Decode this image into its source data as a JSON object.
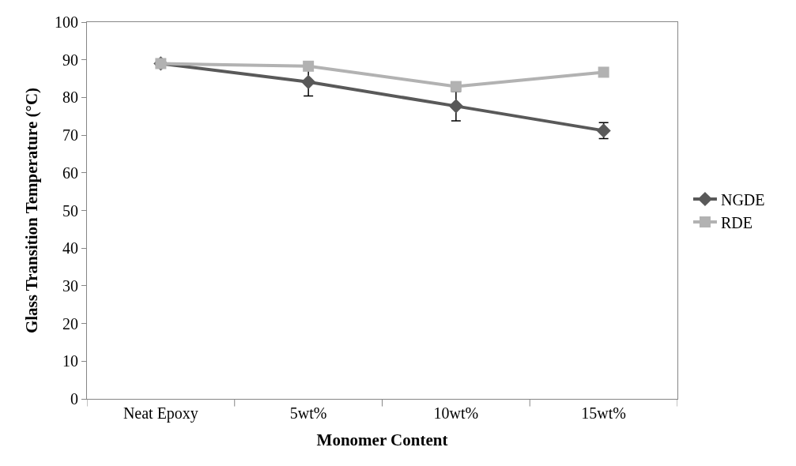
{
  "chart_data": {
    "type": "line",
    "xlabel": "Monomer Content",
    "ylabel": "Glass Transition Temperature (°C)",
    "categories": [
      "Neat Epoxy",
      "5wt%",
      "10wt%",
      "15wt%"
    ],
    "series": [
      {
        "name": "NGDE",
        "color": "#595959",
        "marker": "diamond",
        "values": [
          89.0,
          84.1,
          77.7,
          71.2
        ],
        "errors": [
          null,
          3.7,
          3.9,
          2.1
        ]
      },
      {
        "name": "RDE",
        "color": "#b2b2b2",
        "marker": "square",
        "values": [
          89.0,
          88.3,
          82.9,
          86.7
        ]
      }
    ],
    "ylim": [
      0,
      100
    ],
    "yticks": [
      0,
      10,
      20,
      30,
      40,
      50,
      60,
      70,
      80,
      90,
      100
    ],
    "grid": false,
    "legend": "right"
  }
}
